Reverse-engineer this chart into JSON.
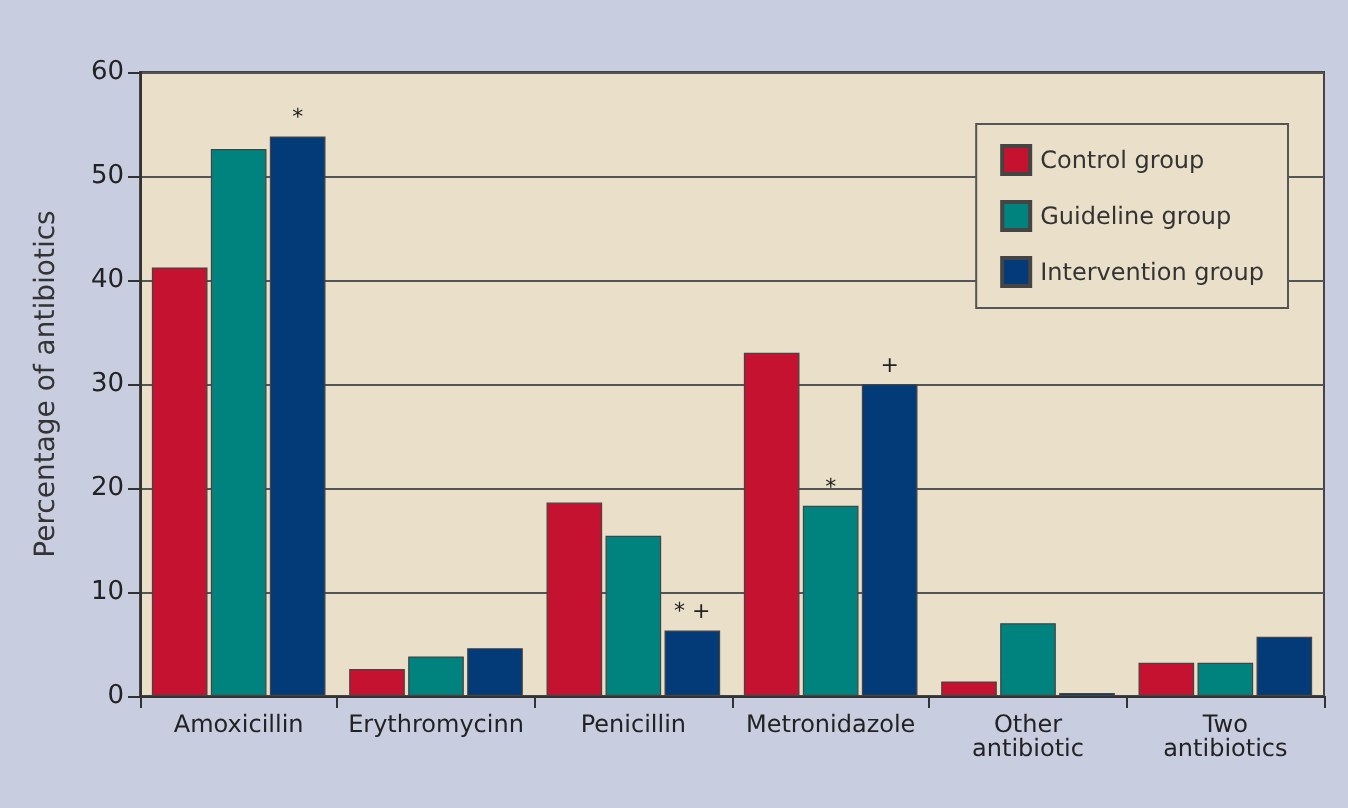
{
  "chart_data": {
    "type": "bar",
    "ylabel": "Percentage of antibiotics",
    "categories": [
      "Amoxicillin",
      "Erythromycinn",
      "Penicillin",
      "Metronidazole",
      "Other\nantibiotic",
      "Two\nantibiotics"
    ],
    "series": [
      {
        "name": "Control group",
        "color": "#c41230",
        "values": [
          41.2,
          2.6,
          18.6,
          33.0,
          1.4,
          3.2
        ]
      },
      {
        "name": "Guideline group",
        "color": "#00837f",
        "values": [
          52.6,
          3.8,
          15.4,
          18.3,
          7.0,
          3.2
        ],
        "value_labels": [
          null,
          null,
          null,
          "*",
          null,
          null
        ]
      },
      {
        "name": "Intervention group",
        "color": "#033a78",
        "values": [
          53.8,
          4.6,
          6.3,
          30.0,
          0.3,
          5.7
        ],
        "value_labels": [
          "*",
          null,
          "* +",
          "+",
          null,
          null
        ]
      }
    ],
    "ylim": [
      0,
      60
    ],
    "yticks": [
      0,
      10,
      20,
      30,
      40,
      50,
      60
    ],
    "grid": "y",
    "legend": "top right"
  }
}
